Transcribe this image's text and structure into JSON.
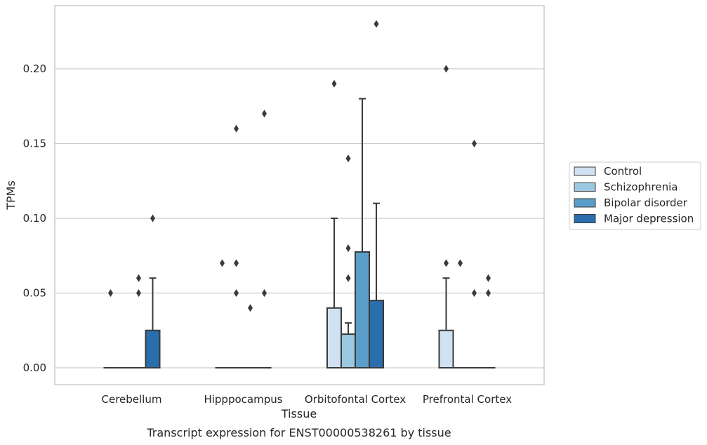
{
  "chart_data": {
    "type": "box",
    "title": "",
    "caption": "Transcript expression for ENST00000538261 by tissue",
    "xlabel": "Tissue",
    "ylabel": "TPMs",
    "ylim": [
      -0.011,
      0.242
    ],
    "yticks": [
      "0.00",
      "0.05",
      "0.10",
      "0.15",
      "0.20"
    ],
    "grid": "horizontal",
    "legend_position": "right",
    "categories": [
      "Cerebellum",
      "Hipppocampus",
      "Orbitofontal Cortex",
      "Prefrontal Cortex"
    ],
    "series": [
      {
        "name": "Control",
        "color": "#d0e1f1",
        "boxes": [
          {
            "q1": 0,
            "median": 0,
            "q3": 0,
            "whisker_low": 0,
            "whisker_high": 0,
            "outliers": [
              0.05
            ]
          },
          {
            "q1": 0,
            "median": 0,
            "q3": 0,
            "whisker_low": 0,
            "whisker_high": 0,
            "outliers": [
              0.07
            ]
          },
          {
            "q1": 0,
            "median": 0,
            "q3": 0.04,
            "whisker_low": 0,
            "whisker_high": 0.1,
            "outliers": [
              0.19
            ]
          },
          {
            "q1": 0,
            "median": 0,
            "q3": 0.025,
            "whisker_low": 0,
            "whisker_high": 0.06,
            "outliers": [
              0.2,
              0.07
            ]
          }
        ]
      },
      {
        "name": "Schizophrenia",
        "color": "#9ac8e0",
        "boxes": [
          {
            "q1": 0,
            "median": 0,
            "q3": 0,
            "whisker_low": 0,
            "whisker_high": 0,
            "outliers": []
          },
          {
            "q1": 0,
            "median": 0,
            "q3": 0,
            "whisker_low": 0,
            "whisker_high": 0,
            "outliers": [
              0.16,
              0.07,
              0.05
            ]
          },
          {
            "q1": 0,
            "median": 0,
            "q3": 0.0225,
            "whisker_low": 0,
            "whisker_high": 0.03,
            "outliers": [
              0.14,
              0.08,
              0.06
            ]
          },
          {
            "q1": 0,
            "median": 0,
            "q3": 0,
            "whisker_low": 0,
            "whisker_high": 0,
            "outliers": [
              0.07
            ]
          }
        ]
      },
      {
        "name": "Bipolar disorder",
        "color": "#5a9ec9",
        "boxes": [
          {
            "q1": 0,
            "median": 0,
            "q3": 0,
            "whisker_low": 0,
            "whisker_high": 0,
            "outliers": [
              0.06,
              0.05
            ]
          },
          {
            "q1": 0,
            "median": 0,
            "q3": 0,
            "whisker_low": 0,
            "whisker_high": 0,
            "outliers": [
              0.04
            ]
          },
          {
            "q1": 0,
            "median": 0,
            "q3": 0.0775,
            "whisker_low": 0,
            "whisker_high": 0.18,
            "outliers": []
          },
          {
            "q1": 0,
            "median": 0,
            "q3": 0,
            "whisker_low": 0,
            "whisker_high": 0,
            "outliers": [
              0.15,
              0.05
            ]
          }
        ]
      },
      {
        "name": "Major depression",
        "color": "#2a6ead",
        "boxes": [
          {
            "q1": 0,
            "median": 0,
            "q3": 0.025,
            "whisker_low": 0,
            "whisker_high": 0.06,
            "outliers": [
              0.1
            ]
          },
          {
            "q1": 0,
            "median": 0,
            "q3": 0,
            "whisker_low": 0,
            "whisker_high": 0,
            "outliers": [
              0.17,
              0.05
            ]
          },
          {
            "q1": 0,
            "median": 0,
            "q3": 0.045,
            "whisker_low": 0,
            "whisker_high": 0.11,
            "outliers": [
              0.23
            ]
          },
          {
            "q1": 0,
            "median": 0,
            "q3": 0,
            "whisker_low": 0,
            "whisker_high": 0,
            "outliers": [
              0.06,
              0.05
            ]
          }
        ]
      }
    ]
  }
}
